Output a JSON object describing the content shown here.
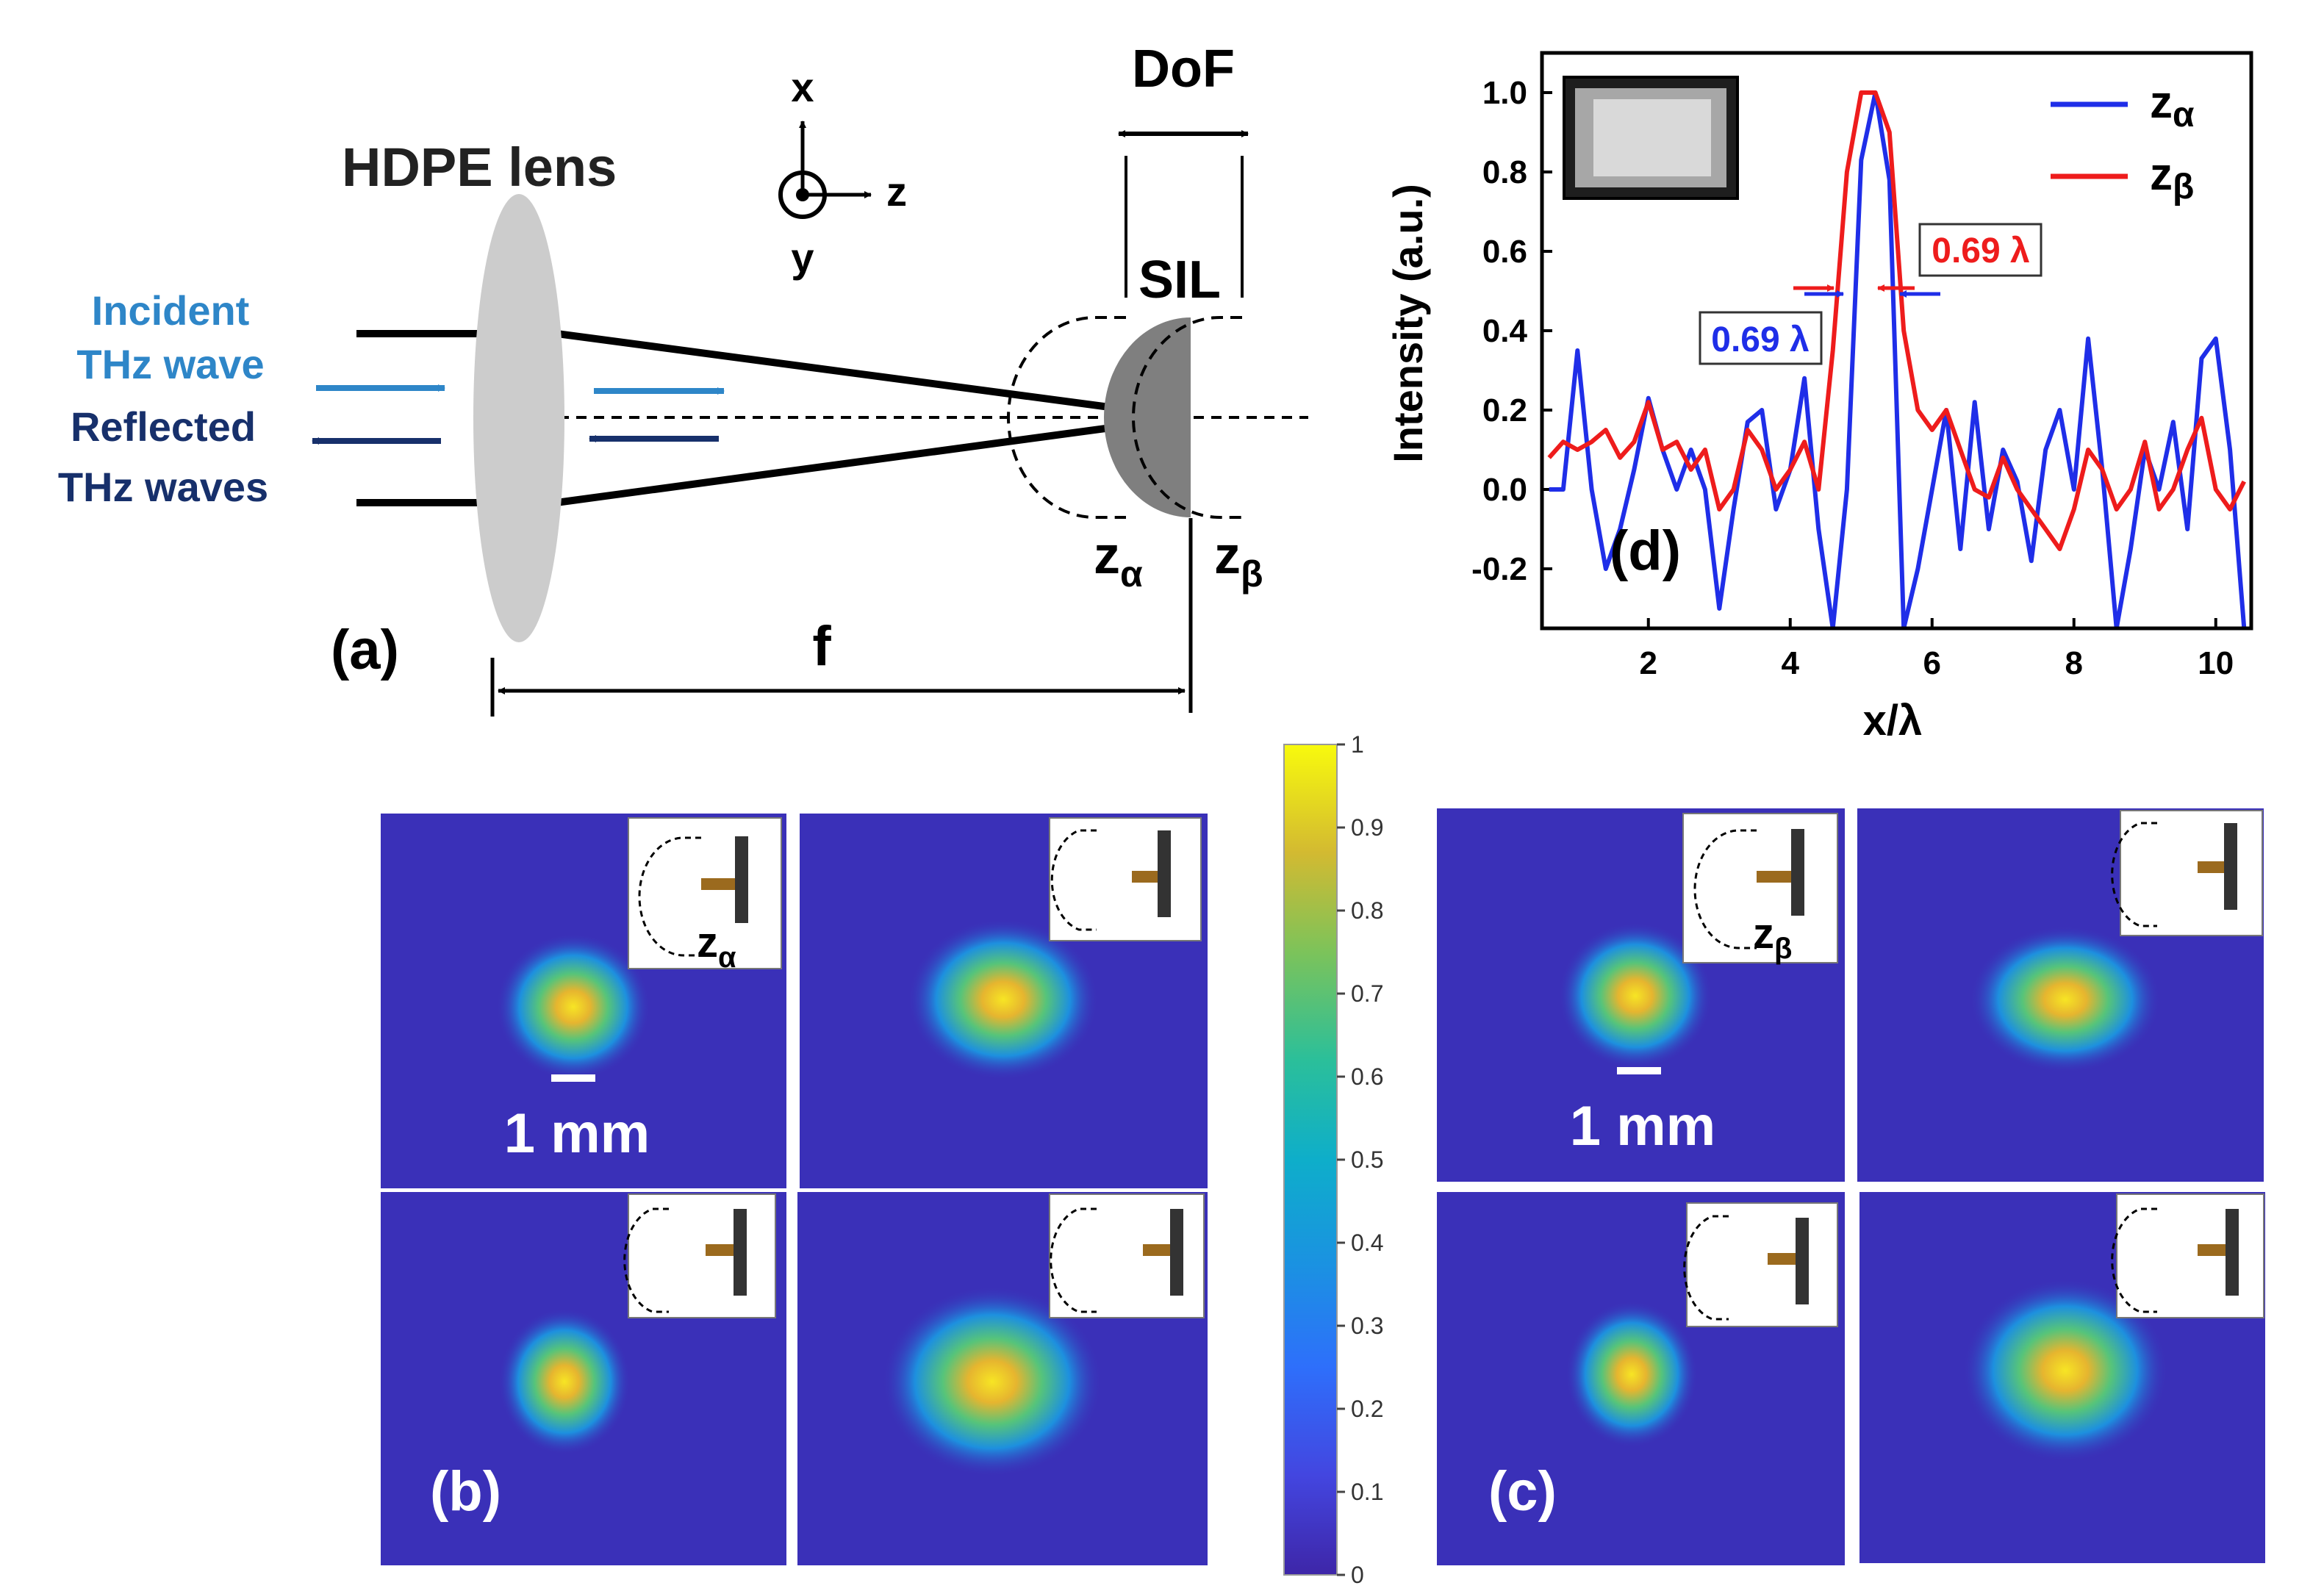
{
  "figure": {
    "panel_a": {
      "label": "(a)",
      "lens_label": "HDPE lens",
      "incident_line1": "Incident",
      "incident_line2": "THz wave",
      "reflected_line1": "Reflected",
      "reflected_line2": "THz waves",
      "axis_x": "x",
      "axis_y": "y",
      "axis_z": "z",
      "dof": "DoF",
      "sil": "SIL",
      "z_alpha": "z",
      "z_alpha_sub": "α",
      "z_beta": "z",
      "z_beta_sub": "β",
      "focal": "f",
      "colors": {
        "incident": "#2e86c8",
        "reflected": "#17306b",
        "lens": "#cccccc",
        "sil": "#7f7f7f"
      }
    },
    "panel_b": {
      "label": "(b)",
      "scale": "1 mm",
      "inset_label": "z",
      "inset_sub": "α"
    },
    "panel_c": {
      "label": "(c)",
      "scale": "1 mm",
      "inset_label": "z",
      "inset_sub": "β"
    },
    "colorbar": {
      "ticks": [
        "0",
        "0.1",
        "0.2",
        "0.3",
        "0.4",
        "0.5",
        "0.6",
        "0.7",
        "0.8",
        "0.9",
        "1"
      ]
    },
    "panel_d": {
      "label": "(d)",
      "fwhm_alpha": "0.69 λ",
      "fwhm_beta": "0.69 λ"
    }
  },
  "chart_data": {
    "type": "line",
    "title": "",
    "xlabel": "x/λ",
    "ylabel": "Intensity (a.u.)",
    "xlim": [
      0.5,
      10.5
    ],
    "ylim": [
      -0.35,
      1.1
    ],
    "xticks": [
      "2",
      "4",
      "6",
      "8",
      "10"
    ],
    "xtick_values": [
      2,
      4,
      6,
      8,
      10
    ],
    "yticks": [
      "-0.2",
      "0.0",
      "0.2",
      "0.4",
      "0.6",
      "0.8",
      "1.0"
    ],
    "ytick_values": [
      -0.2,
      0.0,
      0.2,
      0.4,
      0.6,
      0.8,
      1.0
    ],
    "legend": {
      "position": "top-right"
    },
    "series": [
      {
        "name": "zα",
        "legend_main": "z",
        "legend_sub": "α",
        "color": "#1f2ee8",
        "x": [
          0.6,
          0.8,
          1.0,
          1.2,
          1.4,
          1.6,
          1.8,
          2.0,
          2.2,
          2.4,
          2.6,
          2.8,
          3.0,
          3.2,
          3.4,
          3.6,
          3.8,
          4.0,
          4.2,
          4.4,
          4.6,
          4.8,
          5.0,
          5.2,
          5.4,
          5.6,
          5.8,
          6.0,
          6.2,
          6.4,
          6.6,
          6.8,
          7.0,
          7.2,
          7.4,
          7.6,
          7.8,
          8.0,
          8.2,
          8.4,
          8.6,
          8.8,
          9.0,
          9.2,
          9.4,
          9.6,
          9.8,
          10.0,
          10.2,
          10.4
        ],
        "y": [
          0.0,
          0.0,
          0.35,
          0.0,
          -0.2,
          -0.1,
          0.05,
          0.23,
          0.1,
          0.0,
          0.1,
          0.0,
          -0.3,
          -0.05,
          0.17,
          0.2,
          -0.05,
          0.05,
          0.28,
          -0.1,
          -0.35,
          0.0,
          0.83,
          1.0,
          0.78,
          -0.35,
          -0.2,
          0.0,
          0.2,
          -0.15,
          0.22,
          -0.1,
          0.1,
          0.02,
          -0.18,
          0.1,
          0.2,
          0.0,
          0.38,
          0.05,
          -0.35,
          -0.15,
          0.1,
          0.0,
          0.17,
          -0.1,
          0.33,
          0.38,
          0.1,
          -0.35
        ]
      },
      {
        "name": "zβ",
        "legend_main": "z",
        "legend_sub": "β",
        "color": "#ee1c1c",
        "x": [
          0.6,
          0.8,
          1.0,
          1.2,
          1.4,
          1.6,
          1.8,
          2.0,
          2.2,
          2.4,
          2.6,
          2.8,
          3.0,
          3.2,
          3.4,
          3.6,
          3.8,
          4.0,
          4.2,
          4.4,
          4.6,
          4.8,
          5.0,
          5.2,
          5.4,
          5.6,
          5.8,
          6.0,
          6.2,
          6.4,
          6.6,
          6.8,
          7.0,
          7.2,
          7.4,
          7.6,
          7.8,
          8.0,
          8.2,
          8.4,
          8.6,
          8.8,
          9.0,
          9.2,
          9.4,
          9.6,
          9.8,
          10.0,
          10.2,
          10.4
        ],
        "y": [
          0.08,
          0.12,
          0.1,
          0.12,
          0.15,
          0.08,
          0.12,
          0.22,
          0.1,
          0.12,
          0.05,
          0.1,
          -0.05,
          0.0,
          0.15,
          0.1,
          0.0,
          0.05,
          0.12,
          0.0,
          0.35,
          0.8,
          1.0,
          1.0,
          0.9,
          0.4,
          0.2,
          0.15,
          0.2,
          0.1,
          0.0,
          -0.02,
          0.08,
          0.0,
          -0.05,
          -0.1,
          -0.15,
          -0.05,
          0.1,
          0.05,
          -0.05,
          0.0,
          0.12,
          -0.05,
          0.0,
          0.1,
          0.18,
          0.0,
          -0.05,
          0.02
        ]
      }
    ]
  }
}
